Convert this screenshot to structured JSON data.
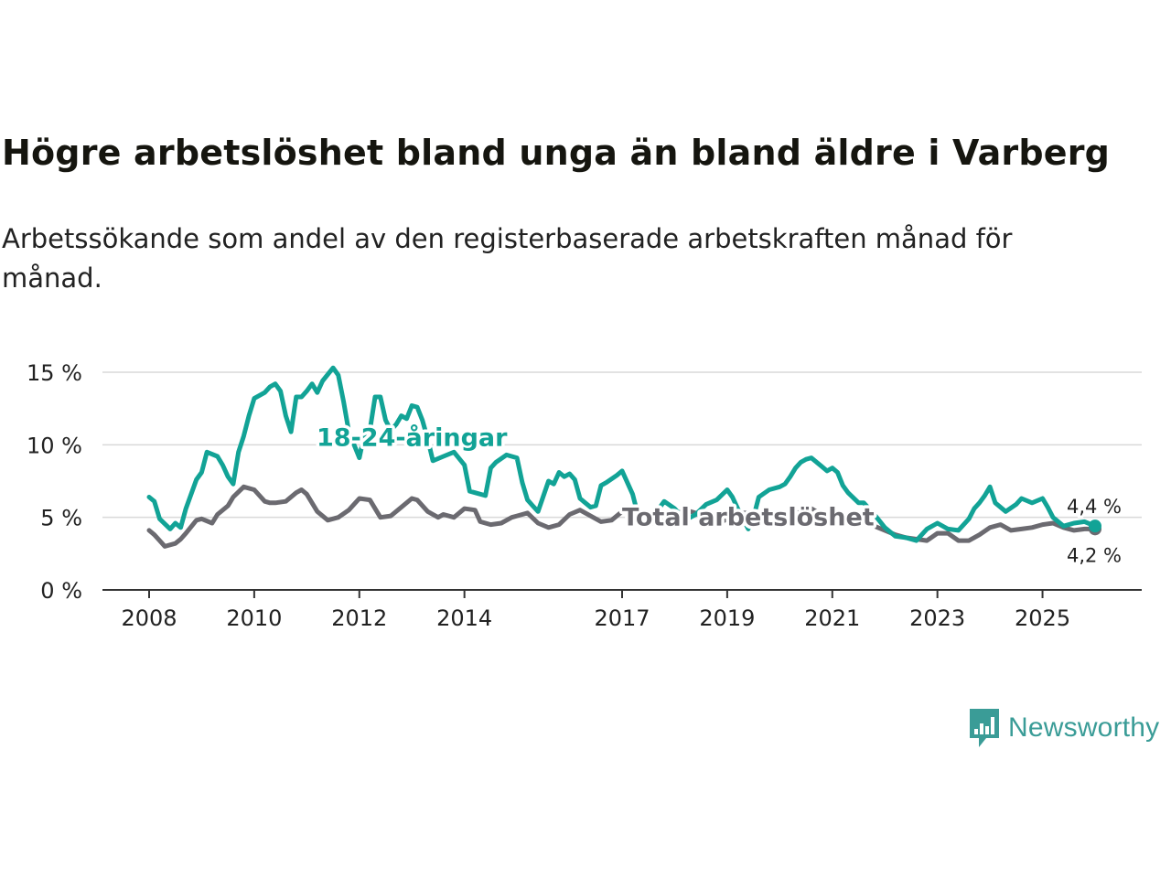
{
  "header": {
    "title": "Högre arbetslöshet bland unga än bland äldre i Varberg",
    "subtitle": "Arbetssökande som andel av den registerbaserade arbetskraften månad för månad."
  },
  "brand": {
    "name": "Newsworthy"
  },
  "colors": {
    "youth": "#12a396",
    "total": "#6b6a70",
    "grid": "#d9d9d9",
    "axis": "#333333"
  },
  "chart_data": {
    "type": "line",
    "title": "Högre arbetslöshet bland unga än bland äldre i Varberg",
    "xlabel": "",
    "ylabel": "",
    "xlim": [
      2007.75,
      2027.4
    ],
    "ylim": [
      0,
      15
    ],
    "y_ticks": [
      0,
      5,
      10,
      15
    ],
    "y_tick_labels": [
      "0 %",
      "5 %",
      "10 %",
      "15 %"
    ],
    "x_ticks": [
      2008,
      2010,
      2012,
      2014,
      2017,
      2019,
      2021,
      2023,
      2025
    ],
    "x_tick_labels": [
      "2008",
      "2010",
      "2012",
      "2014",
      "2017",
      "2019",
      "2021",
      "2023",
      "2025"
    ],
    "series": [
      {
        "name": "Total arbetslöshet",
        "color": "#6b6a70",
        "end_label": "4,2 %",
        "x": [
          2008.0,
          2008.1,
          2008.2,
          2008.3,
          2008.5,
          2008.6,
          2008.7,
          2008.9,
          2009.0,
          2009.2,
          2009.3,
          2009.5,
          2009.6,
          2009.8,
          2010.0,
          2010.2,
          2010.3,
          2010.4,
          2010.6,
          2010.8,
          2010.9,
          2011.0,
          2011.2,
          2011.4,
          2011.6,
          2011.8,
          2012.0,
          2012.2,
          2012.4,
          2012.6,
          2012.8,
          2013.0,
          2013.1,
          2013.3,
          2013.5,
          2013.6,
          2013.8,
          2014.0,
          2014.2,
          2014.3,
          2014.5,
          2014.7,
          2014.9,
          2015.0,
          2015.2,
          2015.4,
          2015.6,
          2015.8,
          2016.0,
          2016.2,
          2016.4,
          2016.6,
          2016.8,
          2017.0,
          2017.2,
          2017.4,
          2017.6,
          2017.8,
          2018.0,
          2018.2,
          2018.4,
          2018.6,
          2018.8,
          2019.0,
          2019.2,
          2019.4,
          2019.6,
          2019.8,
          2020.0,
          2020.2,
          2020.4,
          2020.6,
          2020.8,
          2021.0,
          2021.2,
          2021.4,
          2021.6,
          2021.8,
          2022.0,
          2022.2,
          2022.4,
          2022.6,
          2022.8,
          2023.0,
          2023.2,
          2023.4,
          2023.6,
          2023.8,
          2024.0,
          2024.2,
          2024.4,
          2024.6,
          2024.8,
          2025.0,
          2025.2,
          2025.4,
          2025.6,
          2025.8,
          2026.0
        ],
        "values": [
          4.1,
          3.8,
          3.4,
          3.0,
          3.2,
          3.5,
          3.9,
          4.8,
          4.9,
          4.6,
          5.2,
          5.8,
          6.4,
          7.1,
          6.9,
          6.1,
          6.0,
          6.0,
          6.1,
          6.7,
          6.9,
          6.6,
          5.4,
          4.8,
          5.0,
          5.5,
          6.3,
          6.2,
          5.0,
          5.1,
          5.7,
          6.3,
          6.2,
          5.4,
          5.0,
          5.2,
          5.0,
          5.6,
          5.5,
          4.7,
          4.5,
          4.6,
          5.0,
          5.1,
          5.3,
          4.6,
          4.3,
          4.5,
          5.2,
          5.5,
          5.1,
          4.7,
          4.8,
          5.4,
          5.5,
          5.0,
          4.6,
          4.8,
          5.2,
          5.5,
          5.3,
          4.8,
          4.5,
          4.9,
          5.3,
          5.3,
          4.8,
          4.4,
          4.7,
          5.1,
          5.4,
          5.6,
          5.2,
          4.9,
          4.9,
          5.1,
          4.8,
          4.4,
          4.1,
          3.8,
          3.6,
          3.5,
          3.4,
          3.9,
          3.9,
          3.4,
          3.4,
          3.8,
          4.3,
          4.5,
          4.1,
          4.2,
          4.3,
          4.5,
          4.6,
          4.3,
          4.1,
          4.2,
          4.2
        ]
      },
      {
        "name": "18-24-åringar",
        "color": "#12a396",
        "end_label": "4,4 %",
        "x": [
          2008.0,
          2008.1,
          2008.2,
          2008.4,
          2008.5,
          2008.6,
          2008.7,
          2008.9,
          2009.0,
          2009.1,
          2009.3,
          2009.4,
          2009.5,
          2009.6,
          2009.7,
          2009.8,
          2009.9,
          2010.0,
          2010.2,
          2010.3,
          2010.4,
          2010.5,
          2010.6,
          2010.7,
          2010.8,
          2010.9,
          2011.0,
          2011.1,
          2011.2,
          2011.3,
          2011.5,
          2011.6,
          2011.7,
          2011.8,
          2012.0,
          2012.1,
          2012.2,
          2012.3,
          2012.4,
          2012.5,
          2012.6,
          2012.7,
          2012.8,
          2012.9,
          2013.0,
          2013.1,
          2013.2,
          2013.3,
          2013.4,
          2013.6,
          2013.8,
          2014.0,
          2014.1,
          2014.2,
          2014.4,
          2014.5,
          2014.6,
          2014.8,
          2015.0,
          2015.1,
          2015.2,
          2015.3,
          2015.4,
          2015.6,
          2015.7,
          2015.8,
          2015.9,
          2016.0,
          2016.1,
          2016.2,
          2016.4,
          2016.5,
          2016.6,
          2016.7,
          2016.9,
          2017.0,
          2017.2,
          2017.3,
          2017.5,
          2017.6,
          2017.8,
          2018.0,
          2018.2,
          2018.4,
          2018.6,
          2018.8,
          2019.0,
          2019.1,
          2019.2,
          2019.3,
          2019.4,
          2019.5,
          2019.6,
          2019.8,
          2020.0,
          2020.1,
          2020.2,
          2020.3,
          2020.4,
          2020.5,
          2020.6,
          2020.8,
          2020.9,
          2021.0,
          2021.1,
          2021.2,
          2021.3,
          2021.5,
          2021.6,
          2021.8,
          2022.0,
          2022.2,
          2022.4,
          2022.6,
          2022.8,
          2023.0,
          2023.2,
          2023.4,
          2023.6,
          2023.7,
          2023.8,
          2023.9,
          2024.0,
          2024.1,
          2024.3,
          2024.5,
          2024.6,
          2024.8,
          2025.0,
          2025.1,
          2025.2,
          2025.4,
          2025.6,
          2025.8,
          2026.0
        ],
        "values": [
          6.4,
          6.1,
          4.9,
          4.2,
          4.6,
          4.3,
          5.6,
          7.6,
          8.1,
          9.5,
          9.2,
          8.6,
          7.8,
          7.3,
          9.5,
          10.6,
          12.0,
          13.2,
          13.6,
          14.0,
          14.2,
          13.7,
          12.0,
          10.9,
          13.3,
          13.3,
          13.7,
          14.2,
          13.6,
          14.4,
          15.3,
          14.8,
          13.0,
          10.9,
          9.1,
          10.8,
          11.0,
          13.3,
          13.3,
          11.7,
          11.0,
          11.4,
          12.0,
          11.8,
          12.7,
          12.6,
          11.7,
          10.4,
          8.9,
          9.2,
          9.5,
          8.6,
          6.8,
          6.7,
          6.5,
          8.4,
          8.8,
          9.3,
          9.1,
          7.4,
          6.2,
          5.8,
          5.4,
          7.5,
          7.3,
          8.1,
          7.8,
          8.0,
          7.6,
          6.3,
          5.7,
          5.8,
          7.2,
          7.4,
          7.9,
          8.2,
          6.6,
          5.2,
          4.6,
          5.1,
          6.1,
          5.6,
          4.8,
          5.2,
          5.9,
          6.2,
          6.9,
          6.4,
          5.6,
          4.9,
          4.2,
          5.0,
          6.4,
          6.9,
          7.1,
          7.3,
          7.8,
          8.4,
          8.8,
          9.0,
          9.1,
          8.5,
          8.2,
          8.4,
          8.1,
          7.2,
          6.7,
          6.0,
          6.0,
          5.2,
          4.3,
          3.7,
          3.6,
          3.4,
          4.2,
          4.6,
          4.2,
          4.1,
          4.9,
          5.6,
          6.0,
          6.5,
          7.1,
          6.0,
          5.4,
          5.9,
          6.3,
          6.0,
          6.3,
          5.7,
          5.0,
          4.4,
          4.6,
          4.7,
          4.4
        ]
      }
    ],
    "annotations": [
      {
        "text": "18-24-åringar",
        "series": "18-24-åringar",
        "x": 2013.0,
        "y": 10.5
      },
      {
        "text": "Total arbetslöshet",
        "series": "Total arbetslöshet",
        "x": 2019.4,
        "y": 5.0
      }
    ]
  }
}
